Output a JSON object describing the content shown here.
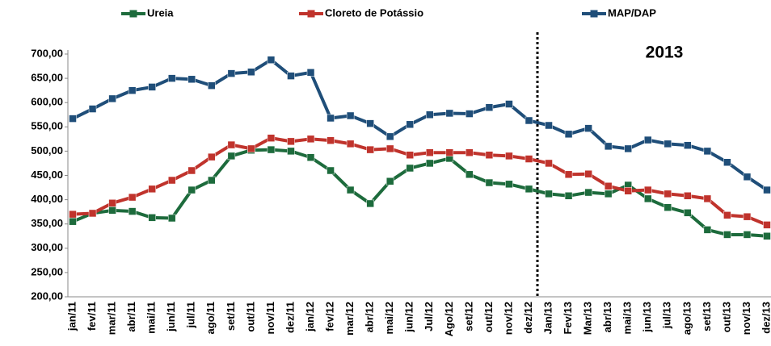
{
  "chart_data": {
    "type": "line",
    "annotation": "2013",
    "categories": [
      "jan/11",
      "fev/11",
      "mar/11",
      "abr/11",
      "mai/11",
      "jun/11",
      "jul/11",
      "ago/11",
      "set/11",
      "out/11",
      "nov/11",
      "dez/11",
      "jan/12",
      "fev/12",
      "mar/12",
      "abr/12",
      "mai/12",
      "jun/12",
      "Jul/12",
      "Ago/12",
      "set/12",
      "out/12",
      "nov/12",
      "dez/12",
      "Jan/13",
      "Fev/13",
      "Mar/13",
      "abr/13",
      "mai/13",
      "jun/13",
      "jul/13",
      "ago/13",
      "set/13",
      "out/13",
      "nov/13",
      "dez/13"
    ],
    "series": [
      {
        "name": "Ureia",
        "color": "#1d6b3c",
        "values": [
          355,
          372,
          378,
          376,
          363,
          362,
          420,
          440,
          490,
          502,
          503,
          500,
          487,
          460,
          420,
          392,
          438,
          465,
          475,
          485,
          452,
          435,
          432,
          422,
          412,
          408,
          415,
          412,
          430,
          402,
          384,
          373,
          338,
          328,
          328,
          325
        ]
      },
      {
        "name": "Cloreto de Potássio",
        "color": "#c0332c",
        "values": [
          370,
          372,
          393,
          405,
          422,
          440,
          460,
          488,
          513,
          505,
          527,
          520,
          525,
          522,
          515,
          503,
          505,
          492,
          497,
          497,
          497,
          492,
          490,
          484,
          475,
          452,
          453,
          428,
          418,
          420,
          412,
          408,
          402,
          368,
          365,
          348
        ]
      },
      {
        "name": "MAP/DAP",
        "color": "#1f4e79",
        "values": [
          567,
          587,
          608,
          625,
          632,
          650,
          648,
          635,
          660,
          663,
          688,
          655,
          662,
          568,
          573,
          557,
          530,
          555,
          575,
          578,
          577,
          590,
          597,
          563,
          553,
          535,
          547,
          510,
          505,
          523,
          515,
          512,
          500,
          477,
          447,
          420
        ]
      }
    ],
    "ylim": [
      200,
      700
    ],
    "yticks": [
      {
        "value": 200,
        "label": "200,00"
      },
      {
        "value": 250,
        "label": "250,00"
      },
      {
        "value": 300,
        "label": "300,00"
      },
      {
        "value": 350,
        "label": "350,00"
      },
      {
        "value": 400,
        "label": "400,00"
      },
      {
        "value": 450,
        "label": "450,00"
      },
      {
        "value": 500,
        "label": "500,00"
      },
      {
        "value": 550,
        "label": "550,00"
      },
      {
        "value": 600,
        "label": "600,00"
      },
      {
        "value": 650,
        "label": "650,00"
      },
      {
        "value": 700,
        "label": "700,00"
      }
    ],
    "grid": false
  }
}
